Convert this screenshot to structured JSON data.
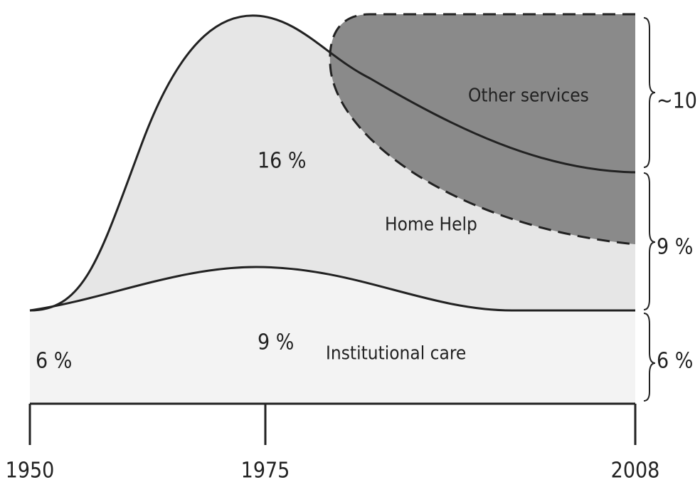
{
  "labels": {
    "institutional_left": "6 %",
    "institutional_mid": "9 %",
    "institutional_name": "Institutional care",
    "home_help_peak": "16 %",
    "home_help_name": "Home Help",
    "other_name": "Other services"
  },
  "right_labels": [
    "~10 %",
    "9 %",
    "6 %"
  ],
  "x_labels": [
    "1950",
    "1975",
    "2008"
  ]
}
